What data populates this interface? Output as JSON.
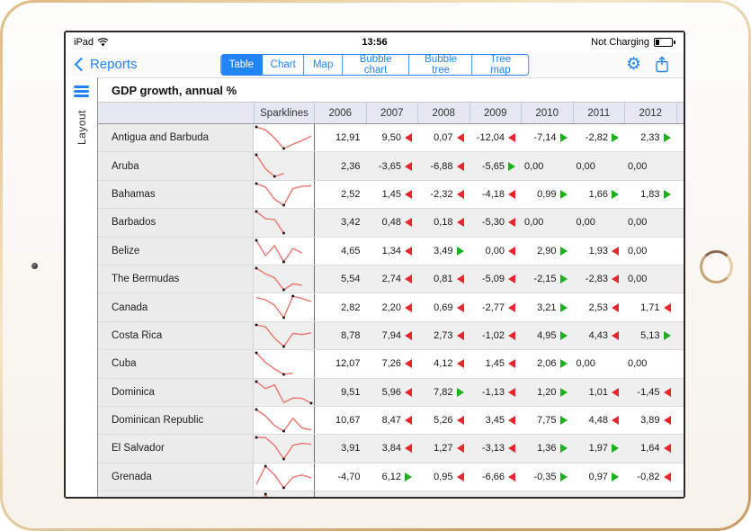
{
  "status_bar": {
    "device": "iPad",
    "time": "13:56",
    "battery_status": "Not Charging",
    "battery_level_pct": 20
  },
  "nav": {
    "back_label": "Reports",
    "tabs": [
      {
        "label": "Table",
        "active": true
      },
      {
        "label": "Chart",
        "active": false
      },
      {
        "label": "Map",
        "active": false
      },
      {
        "label": "Bubble chart",
        "active": false
      },
      {
        "label": "Bubble tree",
        "active": false
      },
      {
        "label": "Tree map",
        "active": false
      }
    ]
  },
  "sidebar": {
    "label": "Layout"
  },
  "table": {
    "title": "GDP growth, annual %",
    "sparklines_header": "Sparklines",
    "years": [
      "2006",
      "2007",
      "2008",
      "2009",
      "2010",
      "2011",
      "2012"
    ],
    "rows": [
      {
        "country": "Antigua and Barbuda",
        "cells": [
          {
            "t": "12,91",
            "a": "none"
          },
          {
            "t": "9,50",
            "a": "down"
          },
          {
            "t": "0,07",
            "a": "down"
          },
          {
            "t": "-12,04",
            "a": "down"
          },
          {
            "t": "-7,14",
            "a": "up"
          },
          {
            "t": "-2,82",
            "a": "up"
          },
          {
            "t": "2,33",
            "a": "up"
          }
        ],
        "spark": [
          12.91,
          9.5,
          0.07,
          -12.04,
          -7.14,
          -2.82,
          2.33
        ]
      },
      {
        "country": "Aruba",
        "cells": [
          {
            "t": "2,36",
            "a": "none"
          },
          {
            "t": "-3,65",
            "a": "down"
          },
          {
            "t": "-6,88",
            "a": "down"
          },
          {
            "t": "-5,65",
            "a": "up"
          },
          {
            "t": "0,00",
            "a": "nd"
          },
          {
            "t": "0,00",
            "a": "nd"
          },
          {
            "t": "0,00",
            "a": "nd"
          }
        ],
        "spark": [
          2.36,
          -3.65,
          -6.88,
          -5.65
        ]
      },
      {
        "country": "Bahamas",
        "cells": [
          {
            "t": "2,52",
            "a": "none"
          },
          {
            "t": "1,45",
            "a": "down"
          },
          {
            "t": "-2,32",
            "a": "down"
          },
          {
            "t": "-4,18",
            "a": "down"
          },
          {
            "t": "0,99",
            "a": "up"
          },
          {
            "t": "1,66",
            "a": "up"
          },
          {
            "t": "1,83",
            "a": "up"
          }
        ],
        "spark": [
          2.52,
          1.45,
          -2.32,
          -4.18,
          0.99,
          1.66,
          1.83
        ]
      },
      {
        "country": "Barbados",
        "cells": [
          {
            "t": "3,42",
            "a": "none"
          },
          {
            "t": "0,48",
            "a": "down"
          },
          {
            "t": "0,18",
            "a": "down"
          },
          {
            "t": "-5,30",
            "a": "down"
          },
          {
            "t": "0,00",
            "a": "nd"
          },
          {
            "t": "0,00",
            "a": "nd"
          },
          {
            "t": "0,00",
            "a": "nd"
          }
        ],
        "spark": [
          3.42,
          0.48,
          0.18,
          -5.3
        ]
      },
      {
        "country": "Belize",
        "cells": [
          {
            "t": "4,65",
            "a": "none"
          },
          {
            "t": "1,34",
            "a": "down"
          },
          {
            "t": "3,49",
            "a": "up"
          },
          {
            "t": "0,00",
            "a": "down"
          },
          {
            "t": "2,90",
            "a": "up"
          },
          {
            "t": "1,93",
            "a": "down"
          },
          {
            "t": "0,00",
            "a": "nd"
          }
        ],
        "spark": [
          4.65,
          1.34,
          3.49,
          0,
          2.9,
          1.93
        ]
      },
      {
        "country": "The Bermudas",
        "cells": [
          {
            "t": "5,54",
            "a": "none"
          },
          {
            "t": "2,74",
            "a": "down"
          },
          {
            "t": "0,81",
            "a": "down"
          },
          {
            "t": "-5,09",
            "a": "down"
          },
          {
            "t": "-2,15",
            "a": "up"
          },
          {
            "t": "-2,83",
            "a": "down"
          },
          {
            "t": "0,00",
            "a": "nd"
          }
        ],
        "spark": [
          5.54,
          2.74,
          0.81,
          -5.09,
          -2.15,
          -2.83
        ]
      },
      {
        "country": "Canada",
        "cells": [
          {
            "t": "2,82",
            "a": "none"
          },
          {
            "t": "2,20",
            "a": "down"
          },
          {
            "t": "0,69",
            "a": "down"
          },
          {
            "t": "-2,77",
            "a": "down"
          },
          {
            "t": "3,21",
            "a": "up"
          },
          {
            "t": "2,53",
            "a": "down"
          },
          {
            "t": "1,71",
            "a": "down"
          }
        ],
        "spark": [
          2.82,
          2.2,
          0.69,
          -2.77,
          3.21,
          2.53,
          1.71
        ]
      },
      {
        "country": "Costa Rica",
        "cells": [
          {
            "t": "8,78",
            "a": "none"
          },
          {
            "t": "7,94",
            "a": "down"
          },
          {
            "t": "2,73",
            "a": "down"
          },
          {
            "t": "-1,02",
            "a": "down"
          },
          {
            "t": "4,95",
            "a": "up"
          },
          {
            "t": "4,43",
            "a": "down"
          },
          {
            "t": "5,13",
            "a": "up"
          }
        ],
        "spark": [
          8.78,
          7.94,
          2.73,
          -1.02,
          4.95,
          4.43,
          5.13
        ]
      },
      {
        "country": "Cuba",
        "cells": [
          {
            "t": "12,07",
            "a": "none"
          },
          {
            "t": "7,26",
            "a": "down"
          },
          {
            "t": "4,12",
            "a": "down"
          },
          {
            "t": "1,45",
            "a": "down"
          },
          {
            "t": "2,06",
            "a": "up"
          },
          {
            "t": "0,00",
            "a": "nd"
          },
          {
            "t": "0,00",
            "a": "nd"
          }
        ],
        "spark": [
          12.07,
          7.26,
          4.12,
          1.45,
          2.06
        ]
      },
      {
        "country": "Dominica",
        "cells": [
          {
            "t": "9,51",
            "a": "none"
          },
          {
            "t": "5,96",
            "a": "down"
          },
          {
            "t": "7,82",
            "a": "up"
          },
          {
            "t": "-1,13",
            "a": "down"
          },
          {
            "t": "1,20",
            "a": "up"
          },
          {
            "t": "1,01",
            "a": "down"
          },
          {
            "t": "-1,45",
            "a": "down"
          }
        ],
        "spark": [
          9.51,
          5.96,
          7.82,
          -1.13,
          1.2,
          1.01,
          -1.45
        ]
      },
      {
        "country": "Dominican Republic",
        "cells": [
          {
            "t": "10,67",
            "a": "none"
          },
          {
            "t": "8,47",
            "a": "down"
          },
          {
            "t": "5,26",
            "a": "down"
          },
          {
            "t": "3,45",
            "a": "down"
          },
          {
            "t": "7,75",
            "a": "up"
          },
          {
            "t": "4,48",
            "a": "down"
          },
          {
            "t": "3,89",
            "a": "down"
          }
        ],
        "spark": [
          10.67,
          8.47,
          5.26,
          3.45,
          7.75,
          4.48,
          3.89
        ]
      },
      {
        "country": "El Salvador",
        "cells": [
          {
            "t": "3,91",
            "a": "none"
          },
          {
            "t": "3,84",
            "a": "down"
          },
          {
            "t": "1,27",
            "a": "down"
          },
          {
            "t": "-3,13",
            "a": "down"
          },
          {
            "t": "1,36",
            "a": "up"
          },
          {
            "t": "1,97",
            "a": "up"
          },
          {
            "t": "1,64",
            "a": "down"
          }
        ],
        "spark": [
          3.91,
          3.84,
          1.27,
          -3.13,
          1.36,
          1.97,
          1.64
        ]
      },
      {
        "country": "Grenada",
        "cells": [
          {
            "t": "-4,70",
            "a": "none"
          },
          {
            "t": "6,12",
            "a": "up"
          },
          {
            "t": "0,95",
            "a": "down"
          },
          {
            "t": "-6,66",
            "a": "down"
          },
          {
            "t": "-0,35",
            "a": "up"
          },
          {
            "t": "0,97",
            "a": "up"
          },
          {
            "t": "-0,82",
            "a": "down"
          }
        ],
        "spark": [
          -4.7,
          6.12,
          0.95,
          -6.66,
          -0.35,
          0.97,
          -0.82
        ]
      }
    ],
    "partial_row": {
      "spark": [
        -2.5,
        6.3,
        0.9
      ]
    }
  },
  "colors": {
    "accent": "#2384f7",
    "arrow_increase": "#1cb01c",
    "arrow_decrease": "#e5262b",
    "sparkline": "#ef746c"
  }
}
